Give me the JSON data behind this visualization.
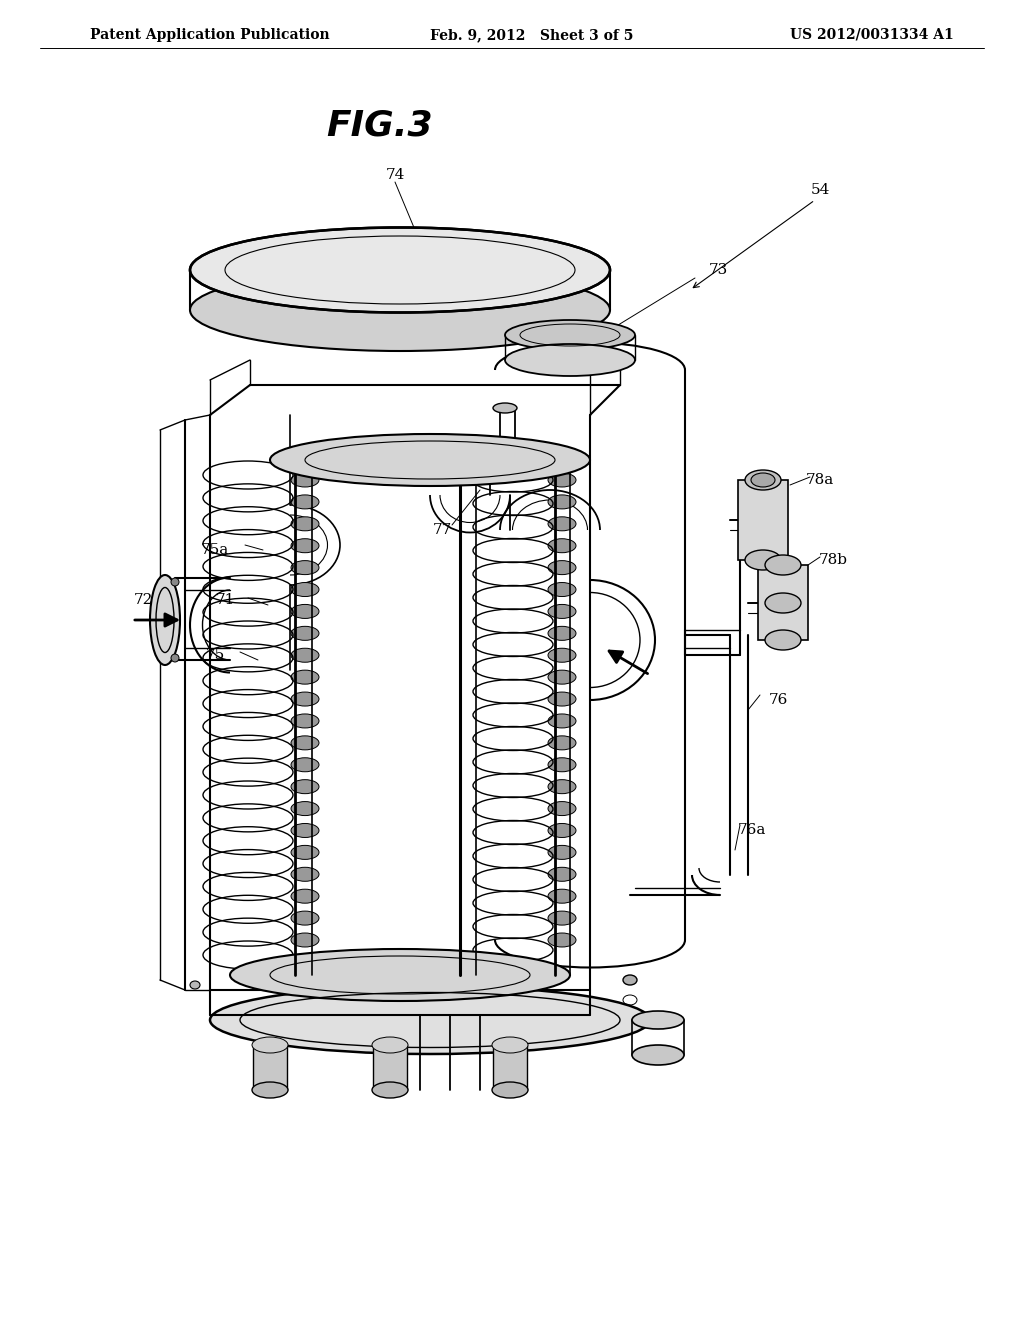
{
  "background_color": "#ffffff",
  "header_left": "Patent Application Publication",
  "header_center": "Feb. 9, 2012   Sheet 3 of 5",
  "header_right": "US 2012/0031334 A1",
  "fig_label": "FIG.3",
  "font_size_header": 10,
  "font_size_fig": 24,
  "font_size_label": 11,
  "line_color": "#000000",
  "line_width": 1.0
}
